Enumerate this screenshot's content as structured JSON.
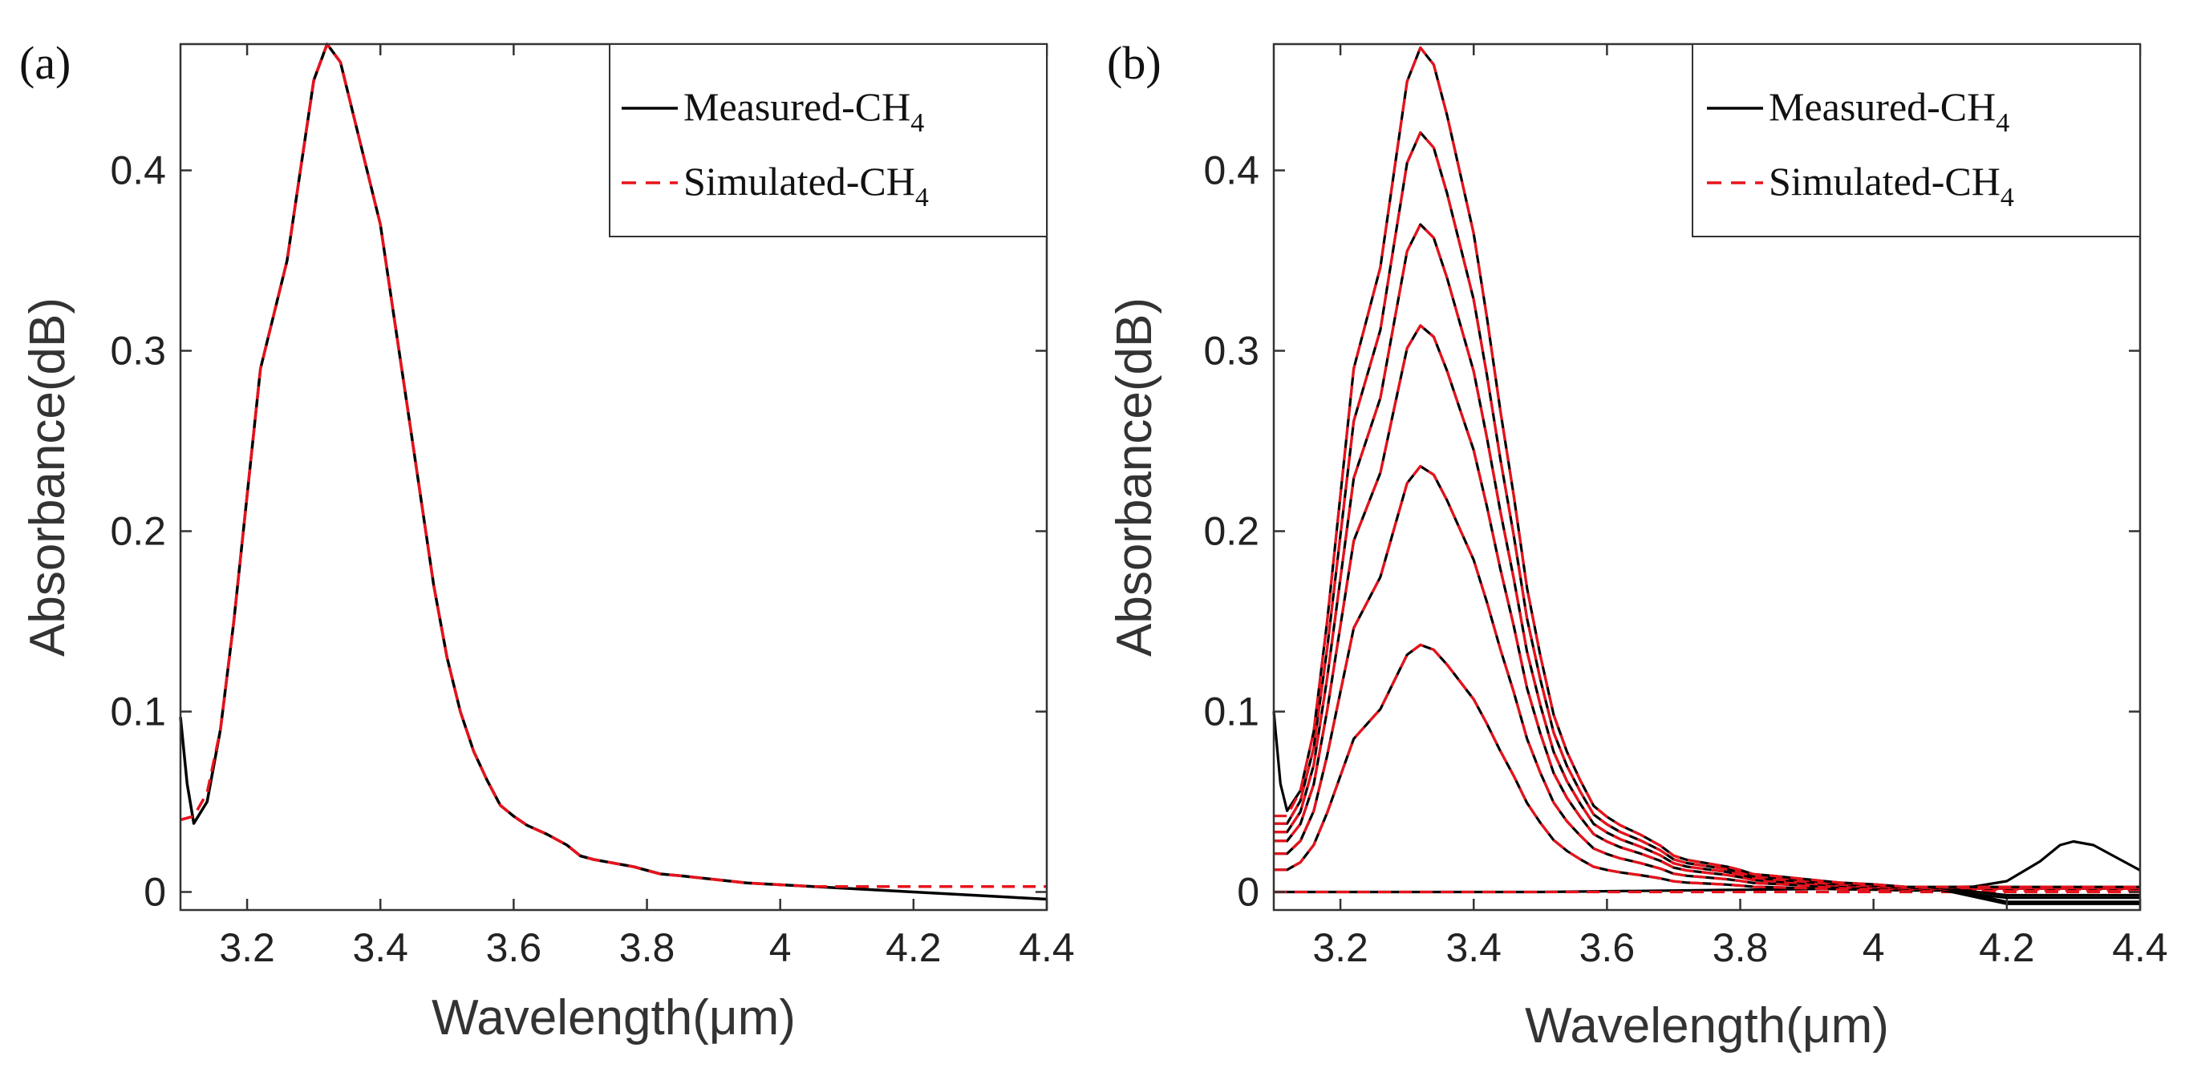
{
  "chart_data": [
    {
      "panel": "(a)",
      "type": "line",
      "xlabel": "Wavelength(μm)",
      "ylabel": "Absorbance(dB)",
      "xlim": [
        3.1,
        4.4
      ],
      "ylim": [
        -0.01,
        0.47
      ],
      "xticks": [
        "3.2",
        "3.4",
        "3.6",
        "3.8",
        "4",
        "4.2",
        "4.4"
      ],
      "yticks": [
        "0",
        "0.1",
        "0.2",
        "0.3",
        "0.4"
      ],
      "legend": {
        "position": "top-right",
        "entries": [
          {
            "name": "Measured-CH",
            "sub": "4",
            "style": "solid",
            "color": "#000000"
          },
          {
            "name": "Simulated-CH",
            "sub": "4",
            "style": "dashed",
            "color": "#e8121c"
          }
        ]
      },
      "series": [
        {
          "name": "Measured-CH4",
          "color": "#000000",
          "style": "solid",
          "x": [
            3.1,
            3.11,
            3.12,
            3.14,
            3.16,
            3.18,
            3.2,
            3.22,
            3.24,
            3.26,
            3.28,
            3.3,
            3.32,
            3.34,
            3.36,
            3.38,
            3.4,
            3.42,
            3.44,
            3.46,
            3.48,
            3.5,
            3.52,
            3.54,
            3.56,
            3.58,
            3.6,
            3.62,
            3.65,
            3.68,
            3.7,
            3.72,
            3.75,
            3.78,
            3.8,
            3.82,
            3.85,
            3.9,
            3.95,
            4.0,
            4.05,
            4.1,
            4.15,
            4.2,
            4.25,
            4.3,
            4.35,
            4.4
          ],
          "y": [
            0.097,
            0.06,
            0.038,
            0.05,
            0.09,
            0.15,
            0.22,
            0.29,
            0.32,
            0.35,
            0.4,
            0.45,
            0.47,
            0.46,
            0.43,
            0.4,
            0.37,
            0.32,
            0.27,
            0.22,
            0.17,
            0.13,
            0.1,
            0.078,
            0.062,
            0.048,
            0.042,
            0.037,
            0.032,
            0.026,
            0.02,
            0.018,
            0.016,
            0.014,
            0.012,
            0.01,
            0.009,
            0.007,
            0.005,
            0.004,
            0.003,
            0.002,
            0.001,
            0.0,
            -0.001,
            -0.002,
            -0.003,
            -0.004
          ]
        },
        {
          "name": "Simulated-CH4",
          "color": "#e8121c",
          "style": "dashed",
          "x": [
            3.1,
            3.12,
            3.14,
            3.16,
            3.18,
            3.2,
            3.22,
            3.24,
            3.26,
            3.28,
            3.3,
            3.32,
            3.34,
            3.36,
            3.38,
            3.4,
            3.42,
            3.44,
            3.46,
            3.48,
            3.5,
            3.52,
            3.54,
            3.56,
            3.58,
            3.6,
            3.62,
            3.65,
            3.68,
            3.7,
            3.72,
            3.75,
            3.78,
            3.8,
            3.82,
            3.85,
            3.9,
            3.95,
            4.0,
            4.05,
            4.1,
            4.2,
            4.3,
            4.4
          ],
          "y": [
            0.04,
            0.042,
            0.055,
            0.09,
            0.15,
            0.22,
            0.29,
            0.32,
            0.35,
            0.4,
            0.45,
            0.47,
            0.46,
            0.43,
            0.4,
            0.37,
            0.32,
            0.27,
            0.22,
            0.17,
            0.13,
            0.1,
            0.078,
            0.062,
            0.048,
            0.042,
            0.037,
            0.032,
            0.026,
            0.02,
            0.018,
            0.016,
            0.014,
            0.012,
            0.01,
            0.009,
            0.007,
            0.005,
            0.004,
            0.003,
            0.003,
            0.003,
            0.003,
            0.003
          ]
        }
      ]
    },
    {
      "panel": "(b)",
      "type": "line",
      "xlabel": "Wavelength(μm)",
      "ylabel": "Absorbance(dB)",
      "xlim": [
        3.1,
        4.4
      ],
      "ylim": [
        -0.01,
        0.47
      ],
      "xticks": [
        "3.2",
        "3.4",
        "3.6",
        "3.8",
        "4",
        "4.2",
        "4.4"
      ],
      "yticks": [
        "0",
        "0.1",
        "0.2",
        "0.3",
        "0.4"
      ],
      "legend": {
        "position": "top-right",
        "entries": [
          {
            "name": "Measured-CH",
            "sub": "4",
            "style": "solid",
            "color": "#000000"
          },
          {
            "name": "Simulated-CH",
            "sub": "4",
            "style": "dashed",
            "color": "#e8121c"
          }
        ]
      },
      "curve_shape": {
        "x": [
          3.1,
          3.12,
          3.14,
          3.16,
          3.18,
          3.2,
          3.22,
          3.24,
          3.26,
          3.28,
          3.3,
          3.32,
          3.34,
          3.36,
          3.38,
          3.4,
          3.42,
          3.44,
          3.46,
          3.48,
          3.5,
          3.52,
          3.54,
          3.56,
          3.58,
          3.6,
          3.62,
          3.65,
          3.68,
          3.7,
          3.72,
          3.75,
          3.78,
          3.8,
          3.82,
          3.85,
          3.9,
          3.95,
          4.0,
          4.05,
          4.1,
          4.2,
          4.3,
          4.4
        ],
        "shape": [
          0.09,
          0.09,
          0.12,
          0.19,
          0.32,
          0.47,
          0.62,
          0.68,
          0.74,
          0.85,
          0.96,
          1.0,
          0.98,
          0.92,
          0.85,
          0.78,
          0.68,
          0.57,
          0.47,
          0.36,
          0.28,
          0.21,
          0.166,
          0.132,
          0.102,
          0.089,
          0.079,
          0.068,
          0.055,
          0.043,
          0.038,
          0.034,
          0.03,
          0.026,
          0.021,
          0.019,
          0.015,
          0.011,
          0.009,
          0.006,
          0.006,
          0.006,
          0.006,
          0.006
        ]
      },
      "peaks": [
        0.0,
        0.137,
        0.236,
        0.314,
        0.37,
        0.421,
        0.468
      ],
      "measured_extra": {
        "x": [
          3.1,
          3.11,
          3.12,
          4.15,
          4.2,
          4.25,
          4.28,
          4.3,
          4.33,
          4.37,
          4.4
        ],
        "y": [
          0.1,
          0.06,
          0.04,
          0.003,
          0.006,
          0.017,
          0.026,
          0.028,
          0.026,
          0.018,
          0.012
        ]
      }
    }
  ]
}
